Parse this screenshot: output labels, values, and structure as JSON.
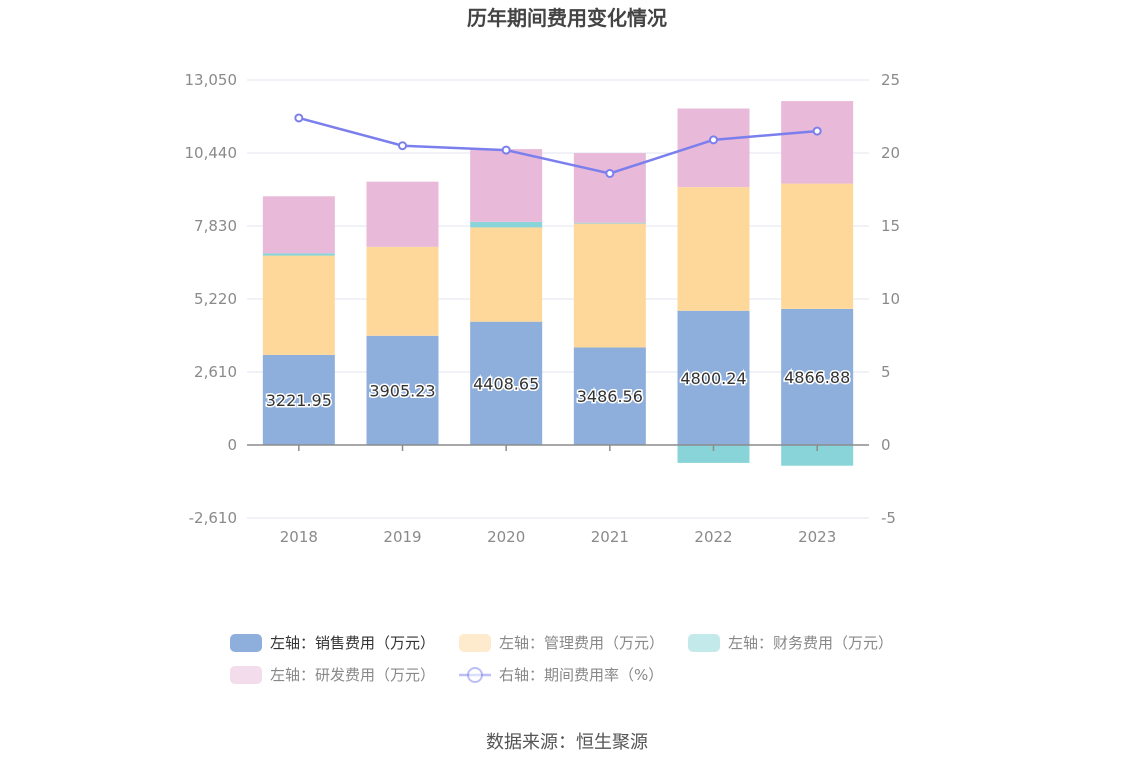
{
  "title": "历年期间费用变化情况",
  "source": "数据来源：恒生聚源",
  "chart_data": {
    "type": "bar",
    "stacked": true,
    "categories": [
      "2018",
      "2019",
      "2020",
      "2021",
      "2022",
      "2023"
    ],
    "left_axis": {
      "min": -2610,
      "max": 13050,
      "ticks": [
        "-2,610",
        "0",
        "2,610",
        "5,220",
        "7,830",
        "10,440",
        "13,050"
      ],
      "tick_values": [
        -2610,
        0,
        2610,
        5220,
        7830,
        10440,
        13050
      ]
    },
    "right_axis": {
      "min": -5,
      "max": 25,
      "ticks": [
        "-5",
        "0",
        "5",
        "10",
        "15",
        "20",
        "25"
      ],
      "tick_values": [
        -5,
        0,
        5,
        10,
        15,
        20,
        25
      ]
    },
    "grid": true,
    "legend_position": "bottom",
    "series": [
      {
        "name": "左轴：销售费用（万元）",
        "axis": "left",
        "kind": "bar",
        "color": "#8eaedb",
        "values": [
          3221.95,
          3905.23,
          4408.65,
          3486.56,
          4800.24,
          4866.88
        ],
        "labels": [
          "3221.95",
          "3905.23",
          "4408.65",
          "3486.56",
          "4800.24",
          "4866.88"
        ]
      },
      {
        "name": "左轴：管理费用（万元）",
        "axis": "left",
        "kind": "bar",
        "color": "#fed89b",
        "values": [
          3550,
          3180,
          3370,
          4430,
          4420,
          4480
        ]
      },
      {
        "name": "左轴：财务费用（万元）",
        "axis": "left",
        "kind": "bar",
        "color": "#88d4d8",
        "values": [
          80,
          -20,
          200,
          30,
          -640,
          -740
        ]
      },
      {
        "name": "左轴：研发费用（万元）",
        "axis": "left",
        "kind": "bar",
        "color": "#e8b9d8",
        "values": [
          2040,
          2330,
          2600,
          2490,
          2810,
          2950
        ]
      },
      {
        "name": "右轴：期间费用率（%）",
        "axis": "right",
        "kind": "line",
        "color": "#7b7fee",
        "values": [
          22.4,
          20.5,
          20.2,
          18.6,
          20.9,
          21.5
        ]
      }
    ]
  }
}
